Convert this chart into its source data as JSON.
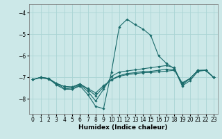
{
  "xlabel": "Humidex (Indice chaleur)",
  "bg_color": "#cce8e8",
  "grid_color": "#aad4d4",
  "line_color": "#1a6b6b",
  "xlim": [
    -0.5,
    23.5
  ],
  "ylim": [
    -8.7,
    -3.6
  ],
  "yticks": [
    -8,
    -7,
    -6,
    -5,
    -4
  ],
  "xticks": [
    0,
    1,
    2,
    3,
    4,
    5,
    6,
    7,
    8,
    9,
    10,
    11,
    12,
    13,
    14,
    15,
    16,
    17,
    18,
    19,
    20,
    21,
    22,
    23
  ],
  "lines": [
    [
      -7.1,
      -7.0,
      -7.05,
      -7.35,
      -7.55,
      -7.55,
      -7.4,
      -7.8,
      -8.35,
      -8.45,
      -6.75,
      -4.65,
      -4.3,
      -4.55,
      -4.75,
      -5.05,
      -6.0,
      -6.35,
      -6.6,
      -7.4,
      -7.15,
      -6.72,
      -6.67,
      -7.0
    ],
    [
      -7.1,
      -7.02,
      -7.08,
      -7.3,
      -7.5,
      -7.55,
      -7.35,
      -7.65,
      -8.1,
      -7.55,
      -6.95,
      -6.75,
      -6.7,
      -6.65,
      -6.6,
      -6.55,
      -6.5,
      -6.45,
      -6.55,
      -7.35,
      -7.05,
      -6.68,
      -6.67,
      -7.0
    ],
    [
      -7.1,
      -7.0,
      -7.05,
      -7.28,
      -7.42,
      -7.48,
      -7.32,
      -7.55,
      -7.85,
      -7.45,
      -7.1,
      -6.92,
      -6.82,
      -6.78,
      -6.73,
      -6.72,
      -6.67,
      -6.62,
      -6.62,
      -7.28,
      -7.05,
      -6.68,
      -6.67,
      -7.0
    ],
    [
      -7.1,
      -7.0,
      -7.05,
      -7.28,
      -7.42,
      -7.44,
      -7.3,
      -7.52,
      -7.72,
      -7.38,
      -7.12,
      -6.95,
      -6.87,
      -6.83,
      -6.78,
      -6.77,
      -6.74,
      -6.71,
      -6.67,
      -7.25,
      -7.05,
      -6.68,
      -6.67,
      -7.0
    ]
  ]
}
